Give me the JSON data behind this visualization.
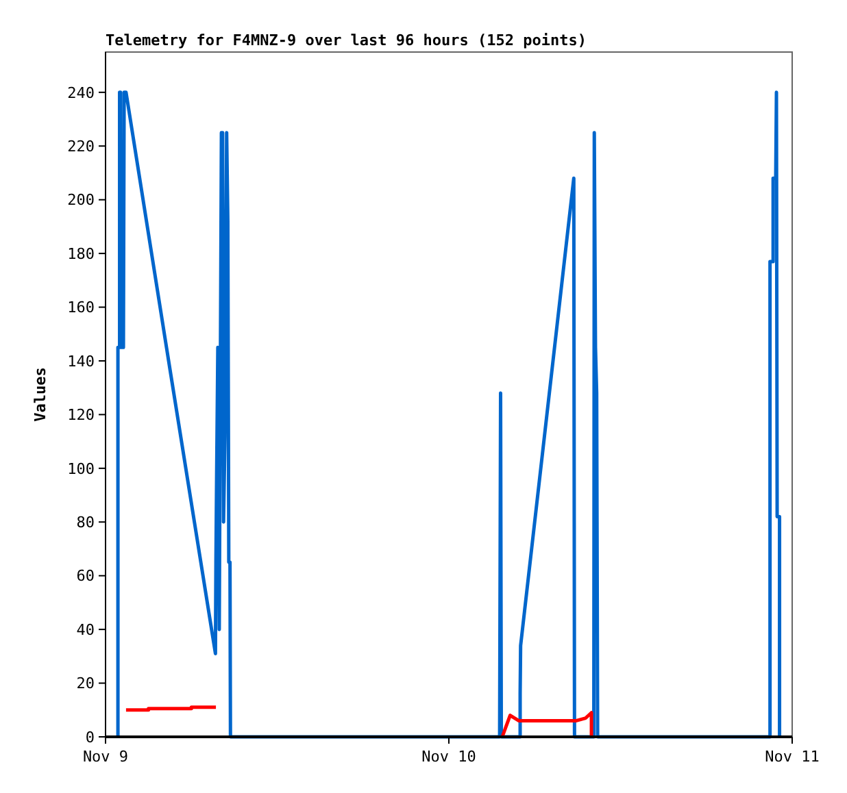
{
  "chart_data": {
    "type": "line",
    "title": "Telemetry for F4MNZ-9 over last 96 hours (152 points)",
    "ylabel": "Values",
    "xlim": [
      "--11-09",
      "--11-11"
    ],
    "xticks": [
      {
        "value": "--11-09",
        "label": "Nov 9"
      },
      {
        "value": "--11-10",
        "label": "Nov 10"
      },
      {
        "value": "--11-11",
        "label": "Nov 11"
      }
    ],
    "ylim": [
      0,
      255
    ],
    "yticks": [
      0,
      20,
      40,
      60,
      80,
      100,
      120,
      140,
      160,
      180,
      200,
      220,
      240
    ],
    "grid": false,
    "marker": "none",
    "line_style": "solid",
    "series": [
      {
        "color": "#0066cc",
        "x": [
          "--11-09T00:52",
          "--11-09T00:52",
          "--11-09T00:59",
          "--11-09T00:59",
          "--11-09T01:03",
          "--11-09T01:03",
          "--11-09T01:06",
          "--11-09T01:10",
          "--11-09T01:15",
          "--11-09T01:18",
          "--11-09T01:26",
          "--11-09T04:30",
          "--11-09T07:41",
          "--11-09T07:43",
          "--11-09T07:46",
          "--11-09T07:51",
          "--11-09T07:57",
          "--11-09T08:06",
          "--11-09T08:11",
          "--11-09T08:15",
          "--11-09T08:21",
          "--11-09T08:28",
          "--11-09T08:33",
          "--11-09T08:37",
          "--11-09T08:42",
          "--11-09T08:44",
          "--11-10T03:33",
          "--11-10T03:37",
          "--11-10T03:40",
          "--11-10T04:59",
          "--11-10T04:59",
          "--11-10T05:01",
          "--11-10T08:44",
          "--11-10T08:47",
          "--11-10T10:08",
          "--11-10T10:10",
          "--11-10T10:15",
          "--11-10T10:20",
          "--11-10T10:24",
          "--11-10T22:27",
          "--11-10T22:27",
          "--11-10T22:40",
          "--11-10T22:40",
          "--11-10T22:51",
          "--11-10T22:54",
          "--11-10T22:57",
          "--11-10T23:07",
          "--11-10T23:07"
        ],
        "values": [
          0,
          145,
          145,
          240,
          240,
          145,
          192,
          145,
          145,
          240,
          240,
          137,
          31,
          65,
          97,
          145,
          40,
          225,
          225,
          80,
          112,
          225,
          192,
          65,
          65,
          0,
          0,
          128,
          0,
          0,
          16,
          34,
          208,
          0,
          0,
          225,
          145,
          128,
          0,
          0,
          177,
          177,
          208,
          208,
          240,
          82,
          82,
          0
        ]
      },
      {
        "color": "#ff0000",
        "x": [
          "--11-09T01:26",
          "--11-09T03:00",
          "--11-09T03:00",
          "--11-09T06:00",
          "--11-09T06:00",
          "--11-09T07:43",
          "--11-09T17:00",
          "--11-10T03:44",
          "--11-10T04:17",
          "--11-10T04:53",
          "--11-10T08:55",
          "--11-10T09:34",
          "--11-10T09:58",
          "--11-10T09:58"
        ],
        "values": [
          10,
          10,
          10.5,
          10.5,
          11,
          11,
          null,
          0,
          8,
          6,
          6,
          7,
          9,
          0
        ]
      }
    ]
  }
}
